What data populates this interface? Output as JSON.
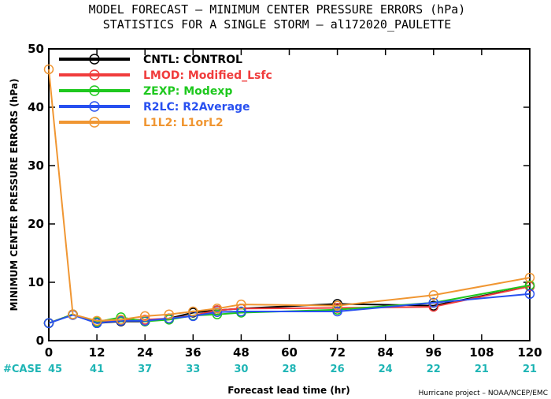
{
  "chart_data": {
    "type": "line",
    "title": "MODEL FORECAST – MINIMUM CENTER PRESSURE ERRORS (hPa)",
    "subtitle": "STATISTICS FOR A SINGLE STORM – al172020_PAULETTE",
    "xlabel": "Forecast lead time (hr)",
    "ylabel": "MINIMUM CENTER PRESSURE ERRORS (hPa)",
    "xlim": [
      0,
      120
    ],
    "ylim": [
      0,
      50
    ],
    "x_ticks": [
      0,
      12,
      24,
      36,
      48,
      60,
      72,
      84,
      96,
      108,
      120
    ],
    "y_ticks": [
      0,
      10,
      20,
      30,
      40,
      50
    ],
    "grid": false,
    "legend_position": "top-left",
    "case_label": "#CASE",
    "case_counts": [
      "45",
      "41",
      "37",
      "33",
      "30",
      "28",
      "26",
      "24",
      "22",
      "21",
      "21"
    ],
    "credit": "Hurricane project – NOAA/NCEP/EMC",
    "series": [
      {
        "name": "CNTL: CONTROL",
        "color": "#000000",
        "points": [
          [
            0,
            3.0
          ],
          [
            6,
            4.5
          ],
          [
            12,
            3.0
          ],
          [
            18,
            3.3
          ],
          [
            24,
            3.3
          ],
          [
            30,
            3.8
          ],
          [
            36,
            4.8
          ],
          [
            42,
            5.2
          ],
          [
            48,
            5.5
          ],
          [
            72,
            6.3
          ],
          [
            96,
            6.0
          ],
          [
            120,
            9.3
          ]
        ]
      },
      {
        "name": "LMOD: Modified_Lsfc",
        "color": "#f03c3c",
        "points": [
          [
            0,
            3.0
          ],
          [
            6,
            4.5
          ],
          [
            12,
            3.1
          ],
          [
            18,
            3.5
          ],
          [
            24,
            3.6
          ],
          [
            30,
            3.8
          ],
          [
            36,
            4.3
          ],
          [
            42,
            5.2
          ],
          [
            48,
            5.5
          ],
          [
            72,
            5.6
          ],
          [
            96,
            5.8
          ],
          [
            120,
            9.3
          ]
        ]
      },
      {
        "name": "ZEXP: Modexp",
        "color": "#1ec81e",
        "points": [
          [
            0,
            3.0
          ],
          [
            6,
            4.5
          ],
          [
            12,
            3.2
          ],
          [
            18,
            4.0
          ],
          [
            24,
            3.3
          ],
          [
            30,
            3.6
          ],
          [
            36,
            4.3
          ],
          [
            42,
            4.5
          ],
          [
            48,
            4.8
          ],
          [
            72,
            5.3
          ],
          [
            96,
            6.5
          ],
          [
            120,
            9.5
          ]
        ]
      },
      {
        "name": "R2LC: R2Average",
        "color": "#2850f0",
        "points": [
          [
            0,
            3.0
          ],
          [
            6,
            4.4
          ],
          [
            12,
            3.0
          ],
          [
            18,
            3.4
          ],
          [
            24,
            3.4
          ],
          [
            30,
            3.8
          ],
          [
            36,
            4.2
          ],
          [
            42,
            4.9
          ],
          [
            48,
            5.0
          ],
          [
            72,
            5.0
          ],
          [
            96,
            6.5
          ],
          [
            120,
            8.0
          ]
        ]
      },
      {
        "name": "L1L2: L1orL2",
        "color": "#f09632",
        "points": [
          [
            0,
            46.5
          ],
          [
            6,
            4.5
          ],
          [
            12,
            3.4
          ],
          [
            18,
            3.6
          ],
          [
            24,
            4.2
          ],
          [
            30,
            4.5
          ],
          [
            36,
            5.0
          ],
          [
            42,
            5.5
          ],
          [
            48,
            6.2
          ],
          [
            72,
            6.0
          ],
          [
            96,
            7.8
          ],
          [
            120,
            10.8
          ]
        ]
      }
    ]
  }
}
